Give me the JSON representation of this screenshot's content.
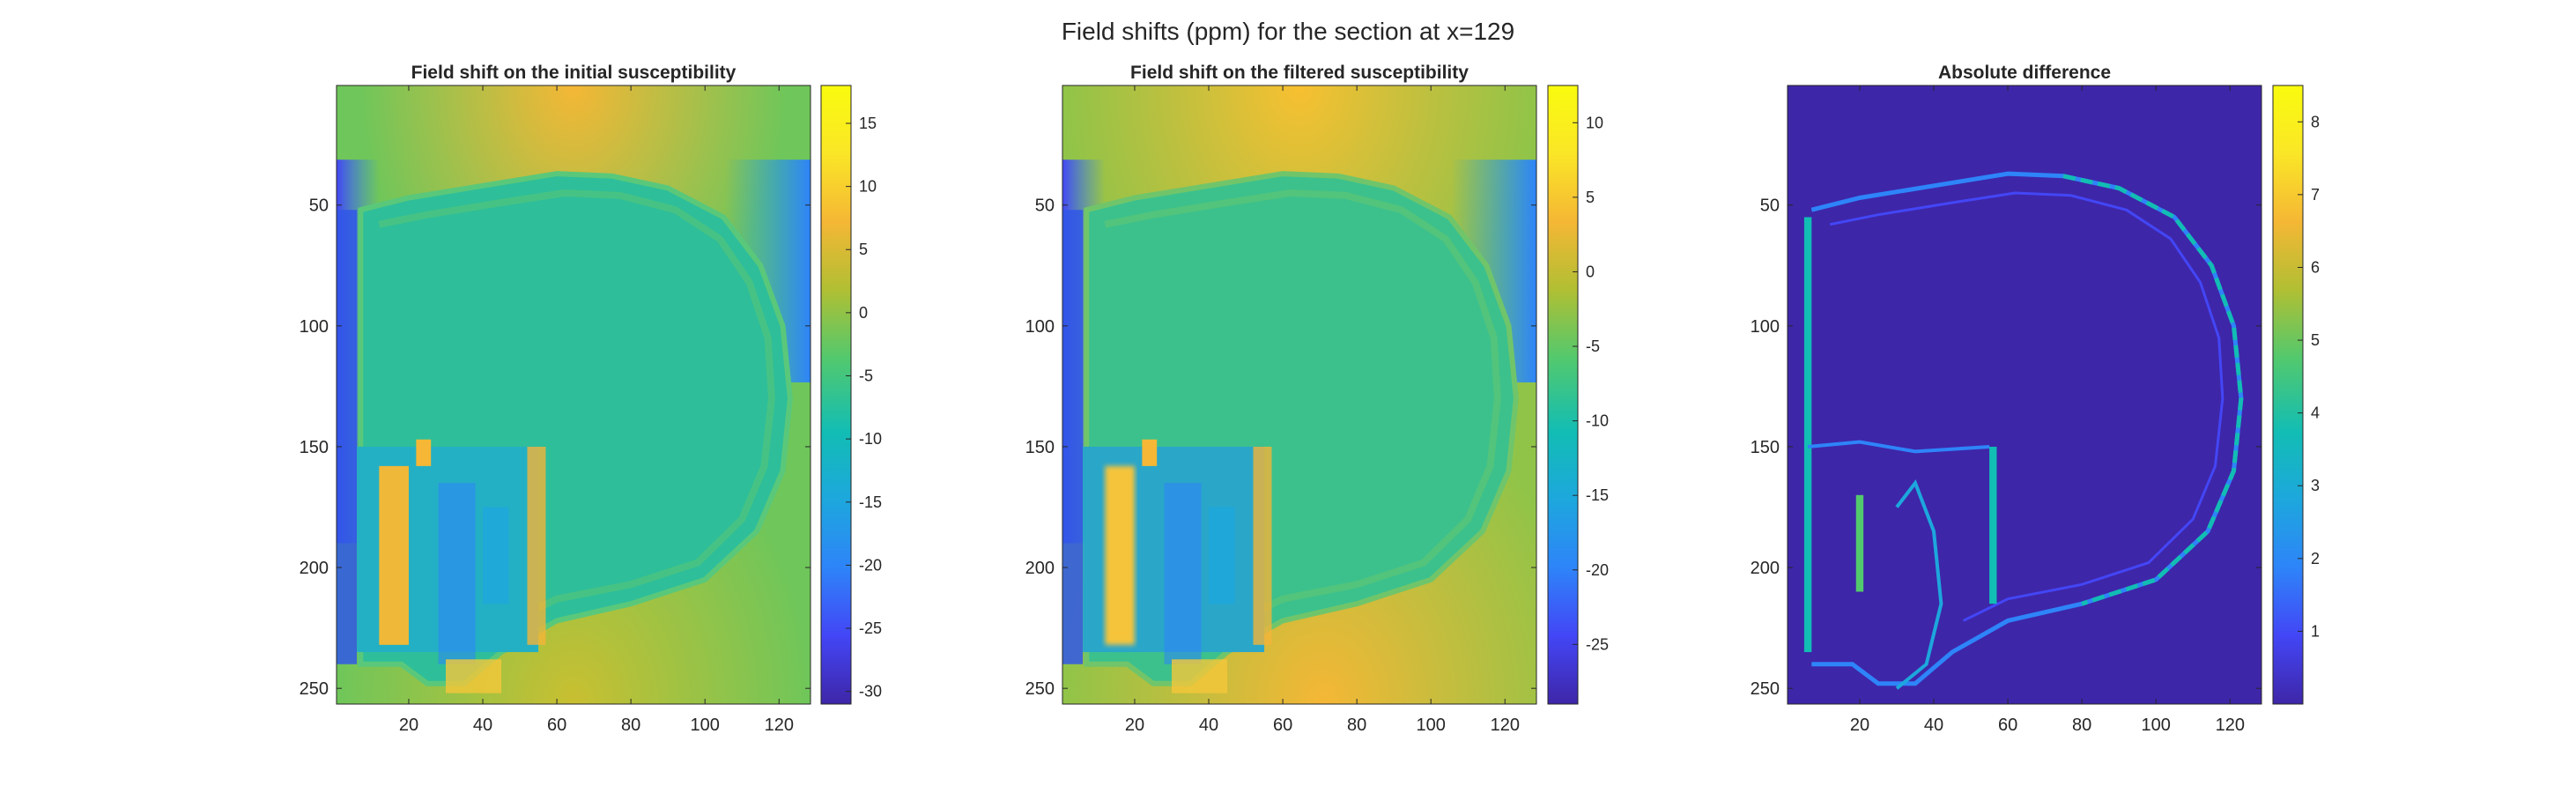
{
  "figure": {
    "suptitle": "Field shifts (ppm) for the section at x=129"
  },
  "colormap": [
    "#3e26a8",
    "#4346f6",
    "#2e84f9",
    "#1da7dd",
    "#12bdb4",
    "#53c96d",
    "#b1bf33",
    "#f5b735",
    "#fae627",
    "#f9fb0e"
  ],
  "chart_data": [
    {
      "type": "heatmap",
      "title": "Field shift on the initial susceptibility",
      "xlim": [
        0.5,
        128.5
      ],
      "ylim": [
        0.5,
        256.5
      ],
      "y_reversed": true,
      "xticks": [
        20,
        40,
        60,
        80,
        100,
        120
      ],
      "yticks": [
        50,
        100,
        150,
        200,
        250
      ],
      "colorbar": {
        "range": [
          -31,
          18
        ],
        "ticks": [
          -30,
          -25,
          -20,
          -15,
          -10,
          -5,
          0,
          5,
          10,
          15
        ]
      }
    },
    {
      "type": "heatmap",
      "title": "Field shift on the filtered susceptibility",
      "xlim": [
        0.5,
        128.5
      ],
      "ylim": [
        0.5,
        256.5
      ],
      "y_reversed": true,
      "xticks": [
        20,
        40,
        60,
        80,
        100,
        120
      ],
      "yticks": [
        50,
        100,
        150,
        200,
        250
      ],
      "colorbar": {
        "range": [
          -29,
          12.5
        ],
        "ticks": [
          -25,
          -20,
          -15,
          -10,
          -5,
          0,
          5,
          10
        ]
      }
    },
    {
      "type": "heatmap",
      "title": "Absolute difference",
      "xlim": [
        0.5,
        128.5
      ],
      "ylim": [
        0.5,
        256.5
      ],
      "y_reversed": true,
      "xticks": [
        20,
        40,
        60,
        80,
        100,
        120
      ],
      "yticks": [
        50,
        100,
        150,
        200,
        250
      ],
      "colorbar": {
        "range": [
          0,
          8.5
        ],
        "ticks": [
          1,
          2,
          3,
          4,
          5,
          6,
          7,
          8
        ]
      }
    }
  ]
}
